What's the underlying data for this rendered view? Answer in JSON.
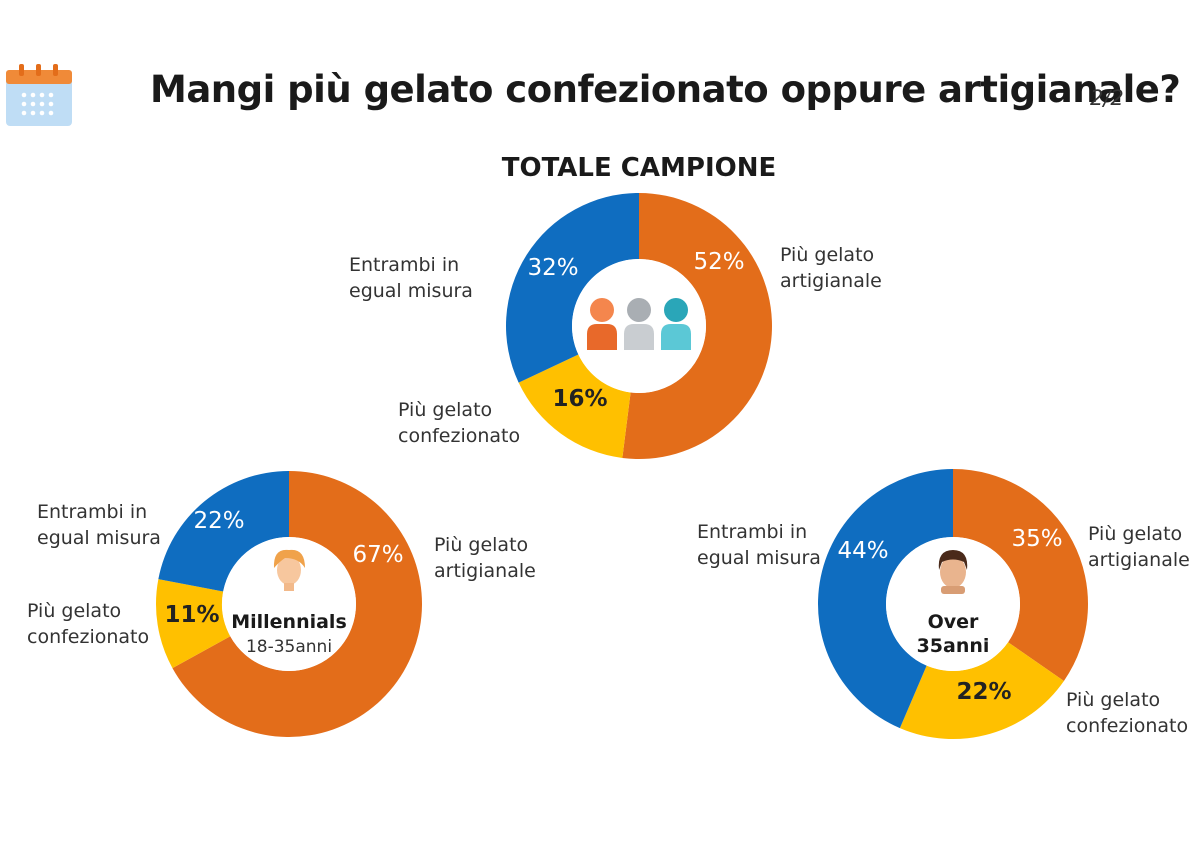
{
  "header": {
    "title": "Mangi più gelato confezionato oppure artigianale?",
    "page": "2/2",
    "icon": "calendar-icon"
  },
  "colors": {
    "artigianale": "#E36D1A",
    "confezionato": "#FFC000",
    "entrambi": "#0F6DC0"
  },
  "chart_data": [
    {
      "type": "pie",
      "title": "TOTALE CAMPIONE",
      "center_label": "",
      "center_icon": "people-group-icon",
      "slices": [
        {
          "label": "Più gelato artigianale",
          "value": 52,
          "text": "52%",
          "label_lines": [
            "Più gelato",
            "artigianale"
          ]
        },
        {
          "label": "Più gelato confezionato",
          "value": 16,
          "text": "16%",
          "label_lines": [
            "Più gelato",
            "confezionato"
          ]
        },
        {
          "label": "Entrambi in egual misura",
          "value": 32,
          "text": "32%",
          "label_lines": [
            "Entrambi in",
            "egual misura"
          ]
        }
      ]
    },
    {
      "type": "pie",
      "title": "",
      "center_label": "Millennials",
      "center_sublabel": "18-35anni",
      "center_icon": "millennial-avatar-icon",
      "slices": [
        {
          "label": "Più gelato artigianale",
          "value": 67,
          "text": "67%",
          "label_lines": [
            "Più gelato",
            "artigianale"
          ]
        },
        {
          "label": "Più gelato confezionato",
          "value": 11,
          "text": "11%",
          "label_lines": [
            "Più gelato",
            "confezionato"
          ]
        },
        {
          "label": "Entrambi in egual misura",
          "value": 22,
          "text": "22%",
          "label_lines": [
            "Entrambi in",
            "egual misura"
          ]
        }
      ]
    },
    {
      "type": "pie",
      "title": "",
      "center_label": "Over",
      "center_sublabel": "35anni",
      "center_icon": "adult-avatar-icon",
      "slices": [
        {
          "label": "Più gelato artigianale",
          "value": 35,
          "text": "35%",
          "label_lines": [
            "Più gelato",
            "artigianale"
          ]
        },
        {
          "label": "Più gelato confezionato",
          "value": 22,
          "text": "22%",
          "label_lines": [
            "Più gelato",
            "confezionato"
          ]
        },
        {
          "label": "Entrambi in egual misura",
          "value": 44,
          "text": "44%",
          "label_lines": [
            "Entrambi in",
            "egual misura"
          ]
        }
      ]
    }
  ]
}
